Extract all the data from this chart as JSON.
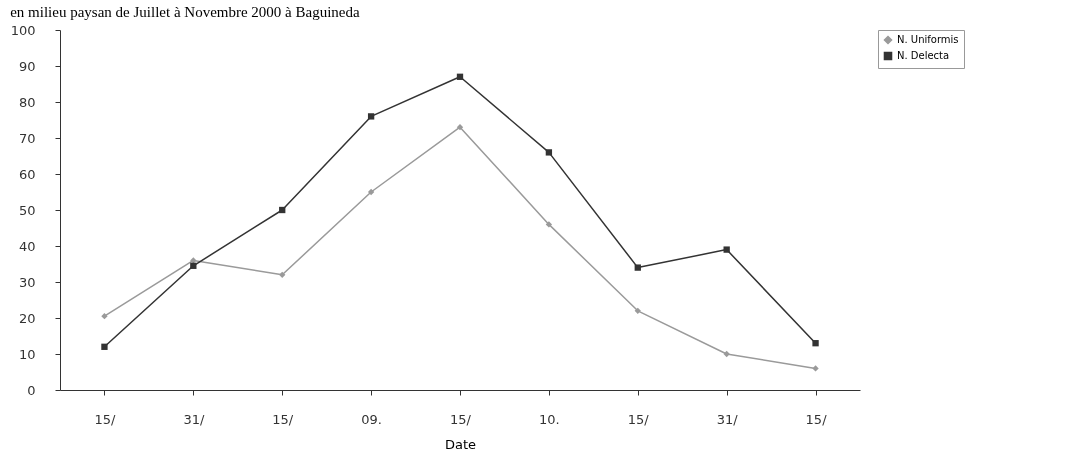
{
  "chart_data": {
    "type": "line",
    "title": "en milieu paysan de Juillet à Novembre 2000 à Baguineda",
    "xlabel": "Date",
    "categories": [
      "15/",
      "31/",
      "15/",
      "09.",
      "15/",
      "10.",
      "15/",
      "31/",
      "15/"
    ],
    "series": [
      {
        "name": "N. Uniformis",
        "color": "#9a9a9a",
        "marker": "diamond",
        "values": [
          20.5,
          36,
          32,
          55,
          73,
          46,
          22,
          10,
          6
        ]
      },
      {
        "name": "N. Delecta",
        "color": "#333333",
        "marker": "square",
        "values": [
          12,
          34.5,
          50,
          76,
          87,
          66,
          34,
          39,
          13
        ]
      }
    ],
    "ylim": [
      0,
      100
    ],
    "yticks": [
      0,
      10,
      20,
      30,
      40,
      50,
      60,
      70,
      80,
      90,
      100
    ],
    "grid": false,
    "legend": "right"
  }
}
